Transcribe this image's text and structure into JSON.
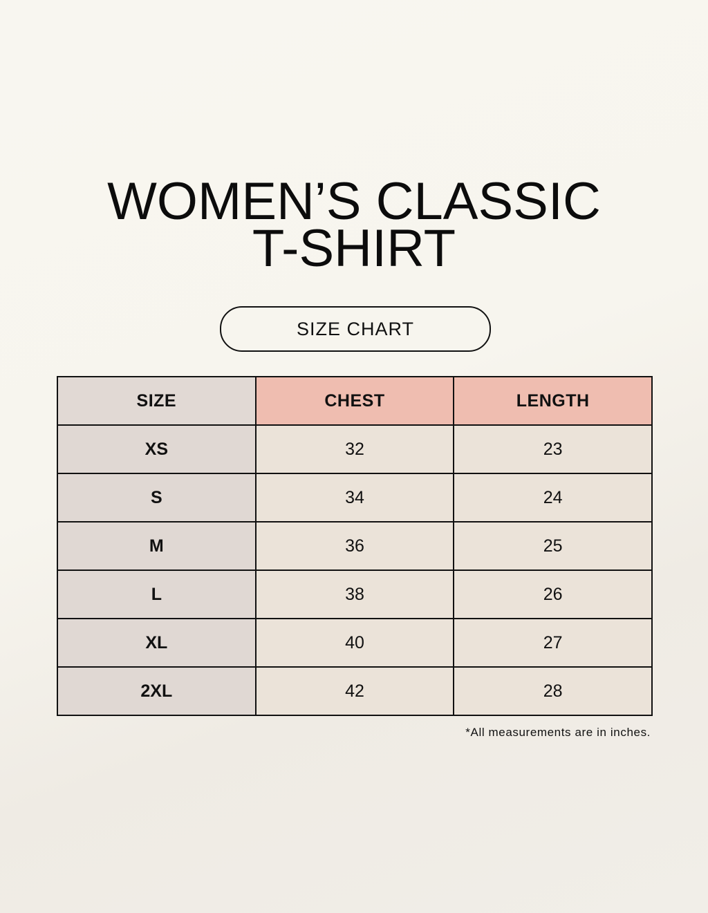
{
  "title_lines": [
    "WOMEN’S CLASSIC",
    "T-SHIRT"
  ],
  "subtitle": "SIZE CHART",
  "table": {
    "headers": [
      "SIZE",
      "CHEST",
      "LENGTH"
    ],
    "rows": [
      [
        "XS",
        "32",
        "23"
      ],
      [
        "S",
        "34",
        "24"
      ],
      [
        "M",
        "36",
        "25"
      ],
      [
        "L",
        "38",
        "26"
      ],
      [
        "XL",
        "40",
        "27"
      ],
      [
        "2XL",
        "42",
        "28"
      ]
    ]
  },
  "footnote": "*All measurements are in inches.",
  "colors": {
    "size_column": "#e0d8d3",
    "header_accent": "#efbdb0",
    "cells": "#ebe3d9"
  }
}
